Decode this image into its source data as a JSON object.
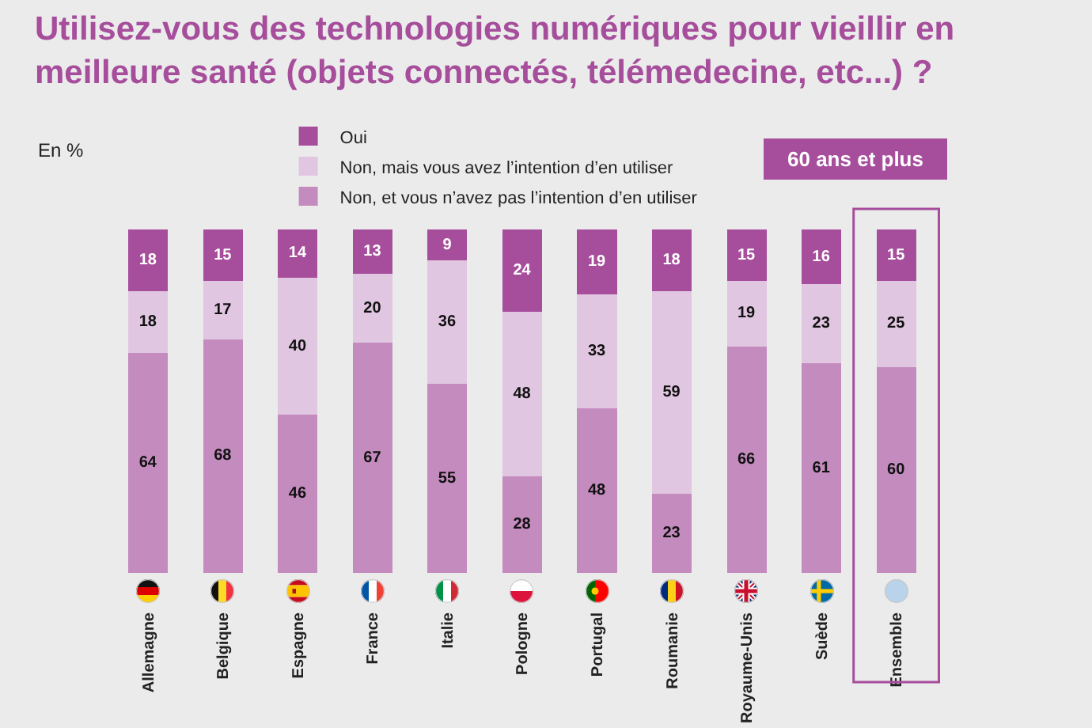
{
  "chart_data": {
    "type": "bar",
    "title": "Utilisez-vous des technologies numériques pour vieillir en meilleure santé (objets connectés, télémedecine, etc...) ?",
    "subtitle": "60 ans et plus",
    "ylabel": "En %",
    "categories": [
      "Allemagne",
      "Belgique",
      "Espagne",
      "France",
      "Italie",
      "Pologne",
      "Portugal",
      "Roumanie",
      "Royaume-Unis",
      "Suède",
      "Ensemble"
    ],
    "series": [
      {
        "name": "Non, et vous n’avez pas l’intention d’en utiliser",
        "color": "#c48bbf",
        "values": [
          64,
          68,
          46,
          67,
          55,
          28,
          48,
          23,
          66,
          61,
          60
        ]
      },
      {
        "name": "Non, mais vous avez l’intention d’en utiliser",
        "color": "#e1c6e1",
        "values": [
          18,
          17,
          40,
          20,
          36,
          48,
          33,
          59,
          19,
          23,
          25
        ]
      },
      {
        "name": "Oui",
        "color": "#a64d9b",
        "values": [
          18,
          15,
          14,
          13,
          9,
          24,
          19,
          18,
          15,
          16,
          15
        ]
      }
    ],
    "stacked": true,
    "data_labels": true,
    "legend": "top",
    "tick_labels": "x"
  }
}
